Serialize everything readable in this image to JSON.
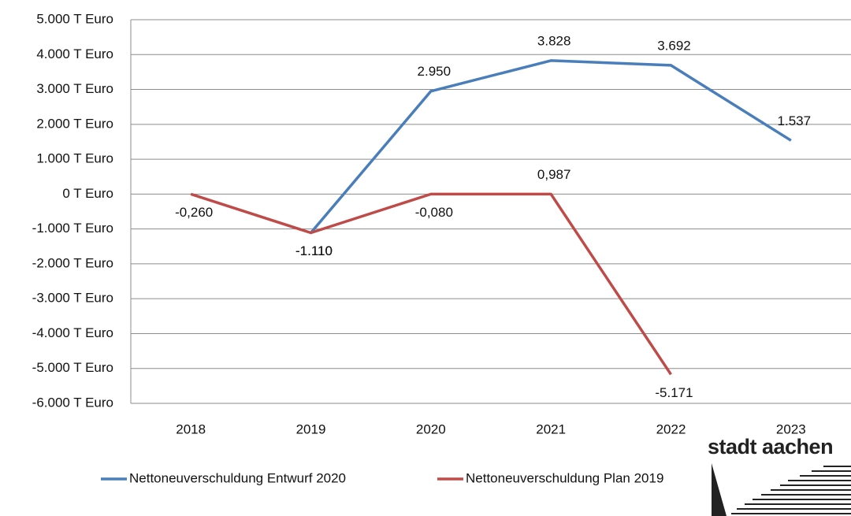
{
  "chart_data": {
    "type": "line",
    "categories": [
      "2018",
      "2019",
      "2020",
      "2021",
      "2022",
      "2023"
    ],
    "series": [
      {
        "name": "Nettoneuverschuldung Entwurf 2020",
        "color": "#4a7ebb",
        "values": [
          null,
          -1110,
          2950,
          3828,
          3692,
          1537
        ],
        "value_labels": [
          null,
          "-1.110",
          "2.950",
          "3.828",
          "3.692",
          "1.537"
        ]
      },
      {
        "name": "Nettoneuverschuldung Plan 2019",
        "color": "#be4b48",
        "values": [
          -0.26,
          -1110,
          -0.08,
          0.987,
          -5171,
          null
        ],
        "value_labels": [
          "-0,260",
          "-1.110",
          "-0,080",
          "0,987",
          "-5.171",
          null
        ]
      }
    ],
    "ylim": [
      -6000,
      5000
    ],
    "yticks": [
      {
        "value": 5000,
        "label": "5.000 T Euro"
      },
      {
        "value": 4000,
        "label": "4.000 T Euro"
      },
      {
        "value": 3000,
        "label": "3.000 T Euro"
      },
      {
        "value": 2000,
        "label": "2.000 T Euro"
      },
      {
        "value": 1000,
        "label": "1.000 T Euro"
      },
      {
        "value": 0,
        "label": "0 T Euro"
      },
      {
        "value": -1000,
        "label": "-1.000 T Euro"
      },
      {
        "value": -2000,
        "label": "-2.000 T Euro"
      },
      {
        "value": -3000,
        "label": "-3.000 T Euro"
      },
      {
        "value": -4000,
        "label": "-4.000 T Euro"
      },
      {
        "value": -5000,
        "label": "-5.000 T Euro"
      },
      {
        "value": -6000,
        "label": "-6.000 T Euro"
      }
    ],
    "grid": true,
    "legend": "bottom"
  },
  "logo": "stadt aachen"
}
